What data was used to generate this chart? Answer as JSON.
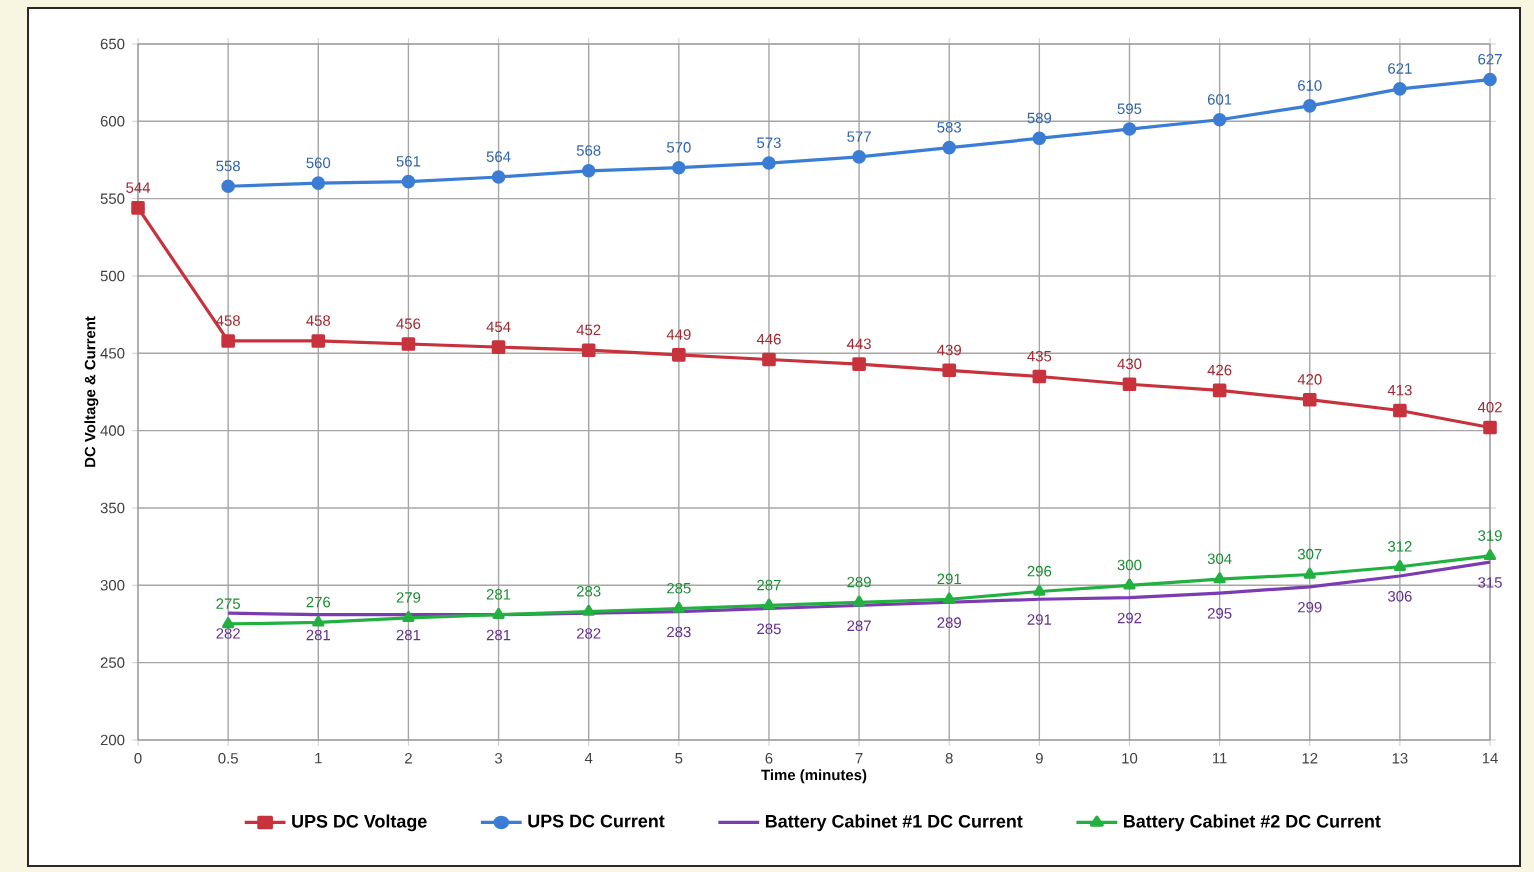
{
  "chart_data": {
    "type": "line",
    "xlabel": "Time (minutes)",
    "ylabel": "DC Voltage & Current",
    "categories": [
      "0",
      "0.5",
      "1",
      "2",
      "3",
      "4",
      "5",
      "6",
      "7",
      "8",
      "9",
      "10",
      "11",
      "12",
      "13",
      "14"
    ],
    "series": [
      {
        "name": "UPS DC Voltage",
        "color": "#c8323c",
        "marker": "square",
        "values": [
          544,
          458,
          458,
          456,
          454,
          452,
          449,
          446,
          443,
          439,
          435,
          430,
          426,
          420,
          413,
          402
        ]
      },
      {
        "name": "UPS DC Current",
        "color": "#3b7dd4",
        "marker": "circle",
        "values": [
          null,
          558,
          560,
          561,
          564,
          568,
          570,
          573,
          577,
          583,
          589,
          595,
          601,
          610,
          621,
          627
        ]
      },
      {
        "name": "Battery Cabinet #1 DC Current",
        "color": "#7a3cb0",
        "marker": "none",
        "values": [
          null,
          282,
          281,
          281,
          281,
          282,
          283,
          285,
          287,
          289,
          291,
          292,
          295,
          299,
          306,
          315
        ]
      },
      {
        "name": "Battery Cabinet #2 DC Current",
        "color": "#22b040",
        "marker": "triangle",
        "values": [
          null,
          275,
          276,
          279,
          281,
          283,
          285,
          287,
          289,
          291,
          296,
          300,
          304,
          307,
          312,
          319
        ]
      }
    ],
    "ylim": [
      200,
      650
    ],
    "yticks": [
      200,
      250,
      300,
      350,
      400,
      450,
      500,
      550,
      600,
      650
    ],
    "grid": true,
    "legend": "bottom",
    "data_labels": true,
    "line_style": "solid"
  }
}
